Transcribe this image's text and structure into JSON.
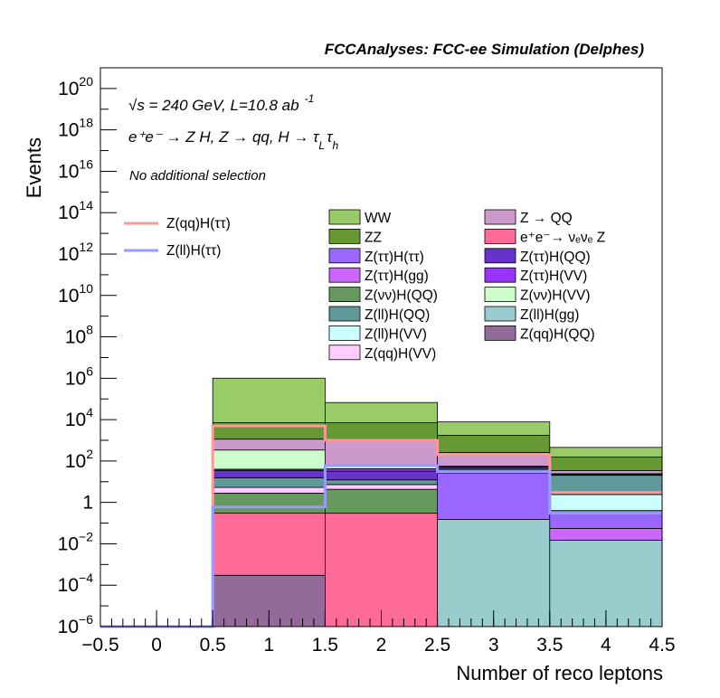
{
  "chart_data": {
    "type": "bar",
    "title": "FCCAnalyses: FCC-ee Simulation (Delphes)",
    "xlabel": "Number of reco leptons",
    "ylabel": "Events",
    "xlim": [
      -0.5,
      4.5
    ],
    "ylim_log10": [
      -6,
      21
    ],
    "y_scale": "log",
    "grid": false,
    "legend_placement": "top-right",
    "bin_edges": [
      0.5,
      1.5,
      2.5,
      3.5,
      4.5
    ],
    "x_ticks": [
      "−0.5",
      "0",
      "0.5",
      "1",
      "1.5",
      "2",
      "2.5",
      "3",
      "3.5",
      "4",
      "4.5"
    ],
    "x_tick_values": [
      -0.5,
      0,
      0.5,
      1,
      1.5,
      2,
      2.5,
      3,
      3.5,
      4,
      4.5
    ],
    "y_ticks": [
      {
        "log": -6,
        "base": "10",
        "exp": "−6"
      },
      {
        "log": -4,
        "base": "10",
        "exp": "−4"
      },
      {
        "log": -2,
        "base": "10",
        "exp": "−2"
      },
      {
        "log": 0,
        "base": "1",
        "exp": ""
      },
      {
        "log": 2,
        "base": "10",
        "exp": "2"
      },
      {
        "log": 4,
        "base": "10",
        "exp": "4"
      },
      {
        "log": 6,
        "base": "10",
        "exp": "6"
      },
      {
        "log": 8,
        "base": "10",
        "exp": "8"
      },
      {
        "log": 10,
        "base": "10",
        "exp": "10"
      },
      {
        "log": 12,
        "base": "10",
        "exp": "12"
      },
      {
        "log": 14,
        "base": "10",
        "exp": "14"
      },
      {
        "log": 16,
        "base": "10",
        "exp": "16"
      },
      {
        "log": 18,
        "base": "10",
        "exp": "18"
      },
      {
        "log": 20,
        "base": "10",
        "exp": "20"
      }
    ],
    "annotations": {
      "energy": "√s = 240 GeV, L=10.8 ab",
      "lumi_exp": "-1",
      "process": "e⁺e⁻ → Z H, Z → qq, H → τ",
      "process_sub1": "L",
      "process_tau": "τ",
      "process_sub2": "h",
      "selection": "No additional selection"
    },
    "stack_series": [
      {
        "name": "Z(qq)H(QQ)",
        "color": "#936a99",
        "values": [
          0.0003,
          0,
          0,
          0
        ]
      },
      {
        "name": "e⁺e⁻→ νₑνₑ Z",
        "color": "#ff6b99",
        "values": [
          0.3,
          0.3,
          0,
          0
        ]
      },
      {
        "name": "Z(ll)H(gg)",
        "color": "#99cccc",
        "values": [
          0,
          0,
          0.15,
          0.015
        ]
      },
      {
        "name": "Z(ττ)H(gg)",
        "color": "#cc66ff",
        "values": [
          0,
          0,
          0,
          0.04
        ]
      },
      {
        "name": "Z(ττ)H(ττ)",
        "color": "#9966ff",
        "values": [
          0,
          0,
          25,
          0.35
        ]
      },
      {
        "name": "Z(ll)H(VV)",
        "color": "#ccffff",
        "values": [
          0,
          0,
          0,
          2
        ]
      },
      {
        "name": "Z(νν)H(QQ)",
        "color": "#66995e",
        "values": [
          2.5,
          4,
          0,
          0
        ]
      },
      {
        "name": "Z(qq)H(VV)",
        "color": "#ffccff",
        "values": [
          2.5,
          3,
          0,
          0
        ]
      },
      {
        "name": "Z(ll)H(QQ)",
        "color": "#5f9999",
        "values": [
          10,
          5,
          15,
          18
        ]
      },
      {
        "name": "Z(ττ)H(QQ)",
        "color": "#6633cc",
        "values": [
          20,
          20,
          10,
          2
        ]
      },
      {
        "name": "Z(ττ)H(VV)",
        "color": "#9933ff",
        "values": [
          5,
          10,
          3,
          1
        ]
      },
      {
        "name": "Z(νν)H(VV)",
        "color": "#ccffcc",
        "values": [
          300,
          20,
          3,
          1
        ]
      },
      {
        "name": "Z → QQ",
        "color": "#cc99cc",
        "values": [
          800,
          1000,
          200,
          10
        ]
      },
      {
        "name": "ZZ",
        "color": "#669933",
        "values": [
          6000,
          6000,
          1500,
          120
        ]
      },
      {
        "name": "WW",
        "color": "#99cc66",
        "values": [
          1000000,
          60000,
          6000,
          300
        ]
      }
    ],
    "line_series": [
      {
        "name": "Z(qq)H(ττ)",
        "color": "#ff9999",
        "values": [
          5000,
          1000,
          200,
          3
        ]
      },
      {
        "name": "Z(ll)H(ττ)",
        "color": "#9999ff",
        "values": [
          0.6,
          60,
          30,
          0.3
        ]
      }
    ],
    "legend_left": [
      {
        "name": "Z(qq)H(ττ)",
        "color": "#ff9999",
        "kind": "line"
      },
      {
        "name": "Z(ll)H(ττ)",
        "color": "#9999ff",
        "kind": "line"
      }
    ],
    "legend_col1": [
      {
        "name": "WW",
        "color": "#99cc66"
      },
      {
        "name": "ZZ",
        "color": "#669933"
      },
      {
        "name": "Z(ττ)H(ττ)",
        "color": "#9966ff"
      },
      {
        "name": "Z(ττ)H(gg)",
        "color": "#cc66ff"
      },
      {
        "name": "Z(νν)H(QQ)",
        "color": "#66995e"
      },
      {
        "name": "Z(ll)H(QQ)",
        "color": "#5f9999"
      },
      {
        "name": "Z(ll)H(VV)",
        "color": "#ccffff"
      },
      {
        "name": "Z(qq)H(VV)",
        "color": "#ffccff"
      }
    ],
    "legend_col2": [
      {
        "name": "Z → QQ",
        "color": "#cc99cc"
      },
      {
        "name": "e⁺e⁻→ νₑνₑ Z",
        "color": "#ff6b99"
      },
      {
        "name": "Z(ττ)H(QQ)",
        "color": "#6633cc"
      },
      {
        "name": "Z(ττ)H(VV)",
        "color": "#9933ff"
      },
      {
        "name": "Z(νν)H(VV)",
        "color": "#ccffcc"
      },
      {
        "name": "Z(ll)H(gg)",
        "color": "#99cccc"
      },
      {
        "name": "Z(qq)H(QQ)",
        "color": "#936a99"
      }
    ]
  }
}
